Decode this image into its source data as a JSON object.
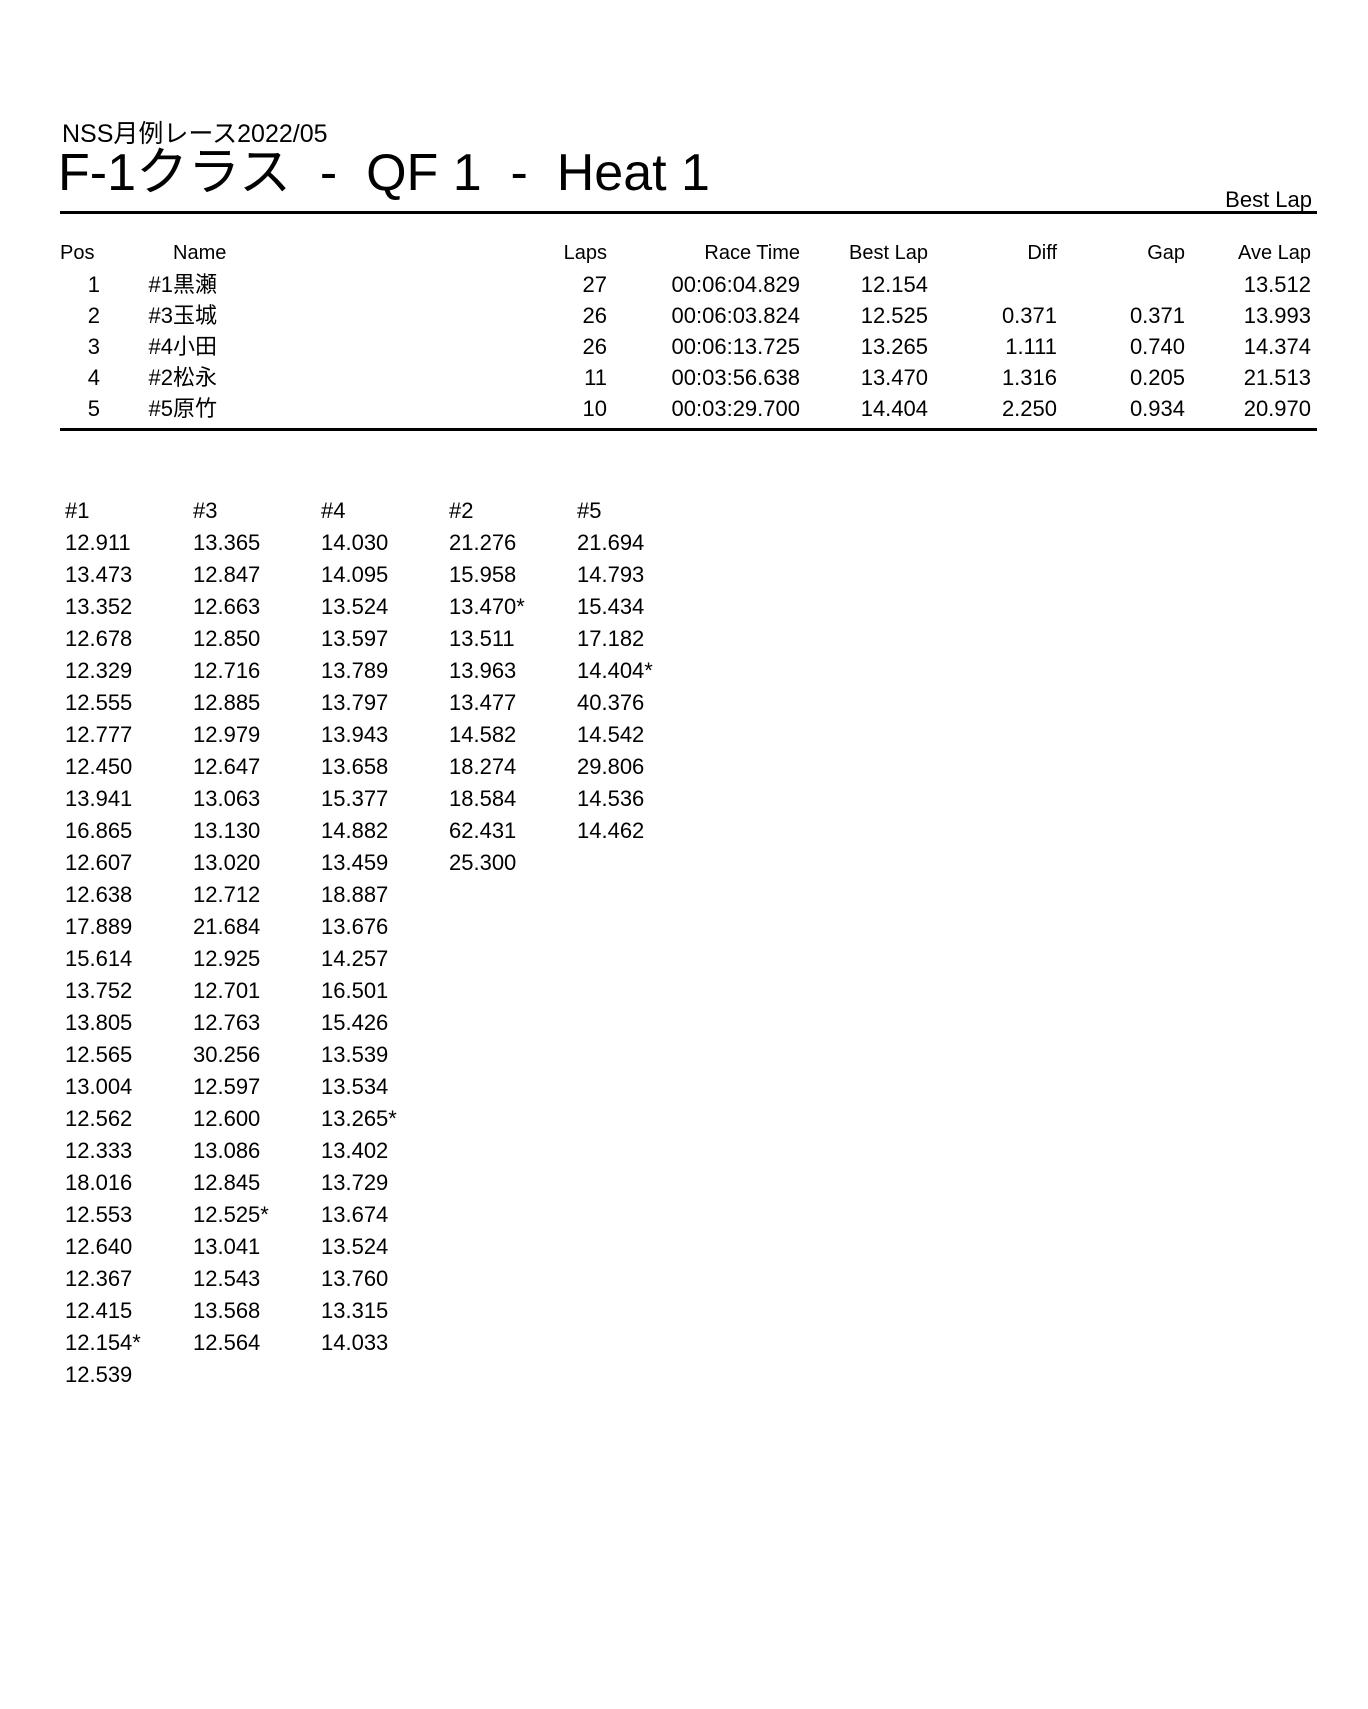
{
  "page": {
    "event_title": "NSS月例レース2022/05",
    "heat_title": "F-1クラス  -  QF 1  -  Heat 1",
    "corner_label": "Best Lap"
  },
  "results": {
    "headers": {
      "pos": "Pos",
      "name": "Name",
      "laps": "Laps",
      "race_time": "Race Time",
      "best_lap": "Best Lap",
      "diff": "Diff",
      "gap": "Gap",
      "ave_lap": "Ave Lap"
    },
    "rows": [
      {
        "pos": "1",
        "car": "#1",
        "name": "黒瀬",
        "laps": "27",
        "race_time": "00:06:04.829",
        "best_lap": "12.154",
        "diff": "",
        "gap": "",
        "ave_lap": "13.512"
      },
      {
        "pos": "2",
        "car": "#3",
        "name": "玉城",
        "laps": "26",
        "race_time": "00:06:03.824",
        "best_lap": "12.525",
        "diff": "0.371",
        "gap": "0.371",
        "ave_lap": "13.993"
      },
      {
        "pos": "3",
        "car": "#4",
        "name": "小田",
        "laps": "26",
        "race_time": "00:06:13.725",
        "best_lap": "13.265",
        "diff": "1.111",
        "gap": "0.740",
        "ave_lap": "14.374"
      },
      {
        "pos": "4",
        "car": "#2",
        "name": "松永",
        "laps": "11",
        "race_time": "00:03:56.638",
        "best_lap": "13.470",
        "diff": "1.316",
        "gap": "0.205",
        "ave_lap": "21.513"
      },
      {
        "pos": "5",
        "car": "#5",
        "name": "原竹",
        "laps": "10",
        "race_time": "00:03:29.700",
        "best_lap": "14.404",
        "diff": "2.250",
        "gap": "0.934",
        "ave_lap": "20.970"
      }
    ]
  },
  "lap_chart": {
    "columns": [
      {
        "header": "#1",
        "laps": [
          "12.911",
          "13.473",
          "13.352",
          "12.678",
          "12.329",
          "12.555",
          "12.777",
          "12.450",
          "13.941",
          "16.865",
          "12.607",
          "12.638",
          "17.889",
          "15.614",
          "13.752",
          "13.805",
          "12.565",
          "13.004",
          "12.562",
          "12.333",
          "18.016",
          "12.553",
          "12.640",
          "12.367",
          "12.415",
          "12.154*",
          "12.539"
        ]
      },
      {
        "header": "#3",
        "laps": [
          "13.365",
          "12.847",
          "12.663",
          "12.850",
          "12.716",
          "12.885",
          "12.979",
          "12.647",
          "13.063",
          "13.130",
          "13.020",
          "12.712",
          "21.684",
          "12.925",
          "12.701",
          "12.763",
          "30.256",
          "12.597",
          "12.600",
          "13.086",
          "12.845",
          "12.525*",
          "13.041",
          "12.543",
          "13.568",
          "12.564"
        ]
      },
      {
        "header": "#4",
        "laps": [
          "14.030",
          "14.095",
          "13.524",
          "13.597",
          "13.789",
          "13.797",
          "13.943",
          "13.658",
          "15.377",
          "14.882",
          "13.459",
          "18.887",
          "13.676",
          "14.257",
          "16.501",
          "15.426",
          "13.539",
          "13.534",
          "13.265*",
          "13.402",
          "13.729",
          "13.674",
          "13.524",
          "13.760",
          "13.315",
          "14.033"
        ]
      },
      {
        "header": "#2",
        "laps": [
          "21.276",
          "15.958",
          "13.470*",
          "13.511",
          "13.963",
          "13.477",
          "14.582",
          "18.274",
          "18.584",
          "62.431",
          "25.300"
        ]
      },
      {
        "header": "#5",
        "laps": [
          "21.694",
          "14.793",
          "15.434",
          "17.182",
          "14.404*",
          "40.376",
          "14.542",
          "29.806",
          "14.536",
          "14.462"
        ]
      }
    ]
  }
}
